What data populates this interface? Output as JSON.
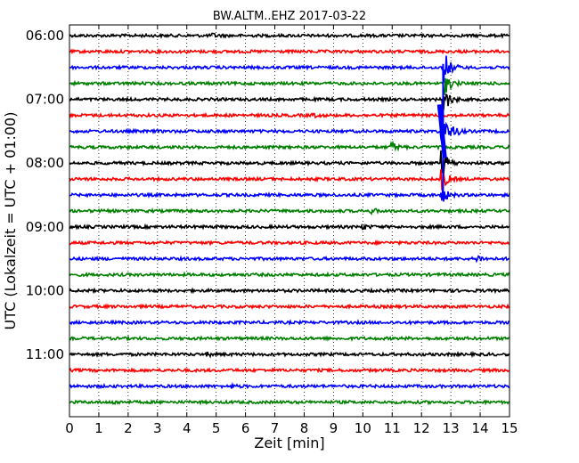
{
  "chart_data": {
    "type": "line",
    "title": "BW.ALTM..EHZ 2017-03-22",
    "xlabel": "Zeit  [min]",
    "ylabel": "UTC (Lokalzeit = UTC + 01:00)",
    "xlim": [
      0,
      15
    ],
    "x_ticks": [
      "0",
      "1",
      "2",
      "3",
      "4",
      "5",
      "6",
      "7",
      "8",
      "9",
      "10",
      "11",
      "12",
      "13",
      "14",
      "15"
    ],
    "y_tick_labels": [
      "06:00",
      "07:00",
      "08:00",
      "09:00",
      "10:00",
      "11:00"
    ],
    "trace_interval_min": 15,
    "trace_colors": [
      "#000000",
      "#ff0000",
      "#0000ff",
      "#008000"
    ],
    "grid": true,
    "series": [
      {
        "start": "06:00",
        "amplitude": 1,
        "events": [
          {
            "t": 4.9,
            "a": 2
          }
        ]
      },
      {
        "start": "06:15",
        "amplitude": 1,
        "events": []
      },
      {
        "start": "06:30",
        "amplitude": 1,
        "events": [
          {
            "t": 12.8,
            "a": 20
          }
        ]
      },
      {
        "start": "06:45",
        "amplitude": 1,
        "events": [
          {
            "t": 12.8,
            "a": 15
          }
        ]
      },
      {
        "start": "07:00",
        "amplitude": 1,
        "events": [
          {
            "t": 12.75,
            "a": 20
          }
        ]
      },
      {
        "start": "07:15",
        "amplitude": 1,
        "events": [
          {
            "t": 8.3,
            "a": 2
          }
        ]
      },
      {
        "start": "07:30",
        "amplitude": 1,
        "events": [
          {
            "t": 12.7,
            "a": 30
          },
          {
            "t": 13.1,
            "a": 6
          }
        ]
      },
      {
        "start": "07:45",
        "amplitude": 1,
        "events": [
          {
            "t": 11.0,
            "a": 6
          }
        ]
      },
      {
        "start": "08:00",
        "amplitude": 1,
        "events": [
          {
            "t": 12.7,
            "a": 20
          }
        ]
      },
      {
        "start": "08:15",
        "amplitude": 1,
        "events": [
          {
            "t": 12.7,
            "a": 15
          }
        ]
      },
      {
        "start": "08:30",
        "amplitude": 1,
        "events": [
          {
            "t": 12.7,
            "a": 12
          }
        ]
      },
      {
        "start": "08:45",
        "amplitude": 1,
        "events": [
          {
            "t": 10.3,
            "a": 3
          }
        ]
      },
      {
        "start": "09:00",
        "amplitude": 1,
        "events": [
          {
            "t": 10.0,
            "a": 3
          }
        ]
      },
      {
        "start": "09:15",
        "amplitude": 1,
        "events": []
      },
      {
        "start": "09:30",
        "amplitude": 1,
        "events": [
          {
            "t": 13.9,
            "a": 4
          }
        ]
      },
      {
        "start": "09:45",
        "amplitude": 1,
        "events": []
      },
      {
        "start": "10:00",
        "amplitude": 1,
        "events": []
      },
      {
        "start": "10:15",
        "amplitude": 1,
        "events": []
      },
      {
        "start": "10:30",
        "amplitude": 1,
        "events": []
      },
      {
        "start": "10:45",
        "amplitude": 1,
        "events": []
      },
      {
        "start": "11:00",
        "amplitude": 1,
        "events": [
          {
            "t": 4.7,
            "a": 2
          }
        ]
      },
      {
        "start": "11:15",
        "amplitude": 1,
        "events": []
      },
      {
        "start": "11:30",
        "amplitude": 1,
        "events": [
          {
            "t": 5.5,
            "a": 2
          }
        ]
      },
      {
        "start": "11:45",
        "amplitude": 1,
        "events": [
          {
            "t": 1.5,
            "a": 2
          }
        ]
      }
    ]
  }
}
